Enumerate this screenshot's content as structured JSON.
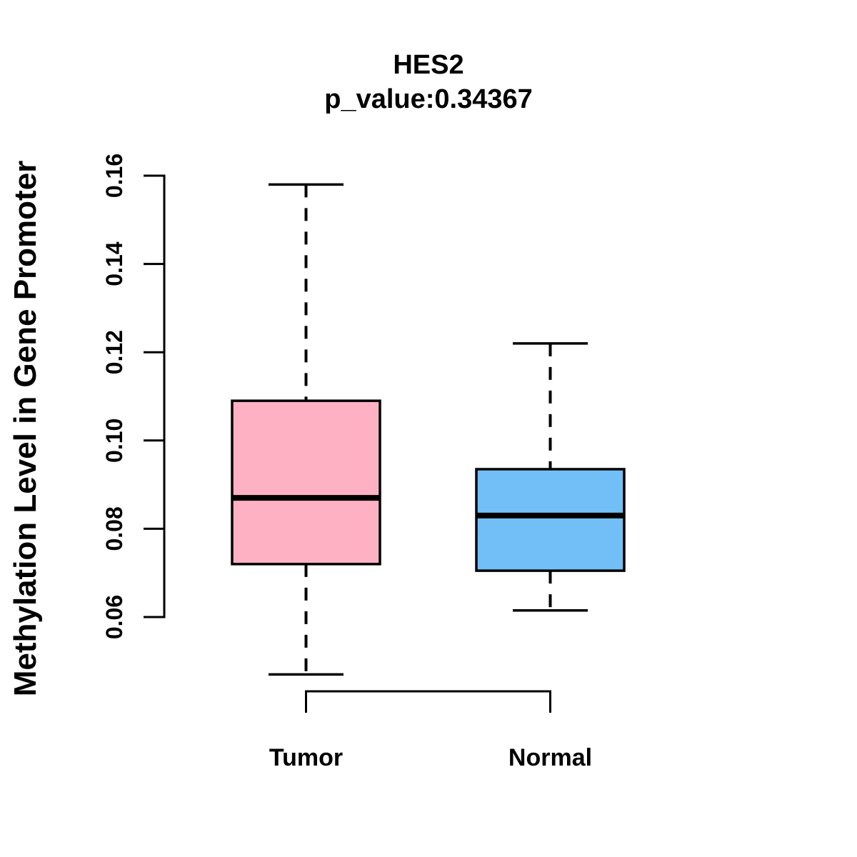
{
  "chart_data": {
    "type": "boxplot",
    "title": "HES2",
    "subtitle": "p_value:0.34367",
    "ylabel": "Methylation Level in Gene Promoter",
    "xlabel": "",
    "ylim": [
      0.06,
      0.16
    ],
    "y_ticks": [
      0.06,
      0.08,
      0.1,
      0.12,
      0.14,
      0.16
    ],
    "y_tick_labels": [
      "0.06",
      "0.08",
      "0.10",
      "0.12",
      "0.14",
      "0.16"
    ],
    "grid": false,
    "legend": "none",
    "whisker_style": "dashed",
    "groups": [
      {
        "label": "Tumor",
        "color": "#FFB1C4",
        "stats": {
          "whisker_low": 0.047,
          "q1": 0.072,
          "median": 0.087,
          "q3": 0.109,
          "whisker_high": 0.158
        }
      },
      {
        "label": "Normal",
        "color": "#72BFF8",
        "stats": {
          "whisker_low": 0.0615,
          "q1": 0.0705,
          "median": 0.083,
          "q3": 0.0935,
          "whisker_high": 0.122
        }
      }
    ],
    "annotations": {
      "comparison_bracket_between": [
        "Tumor",
        "Normal"
      ]
    },
    "colors": {
      "box_border": "#000000",
      "median_line": "#000000",
      "axis": "#000000",
      "text": "#000000",
      "background": "#FFFFFF"
    }
  }
}
